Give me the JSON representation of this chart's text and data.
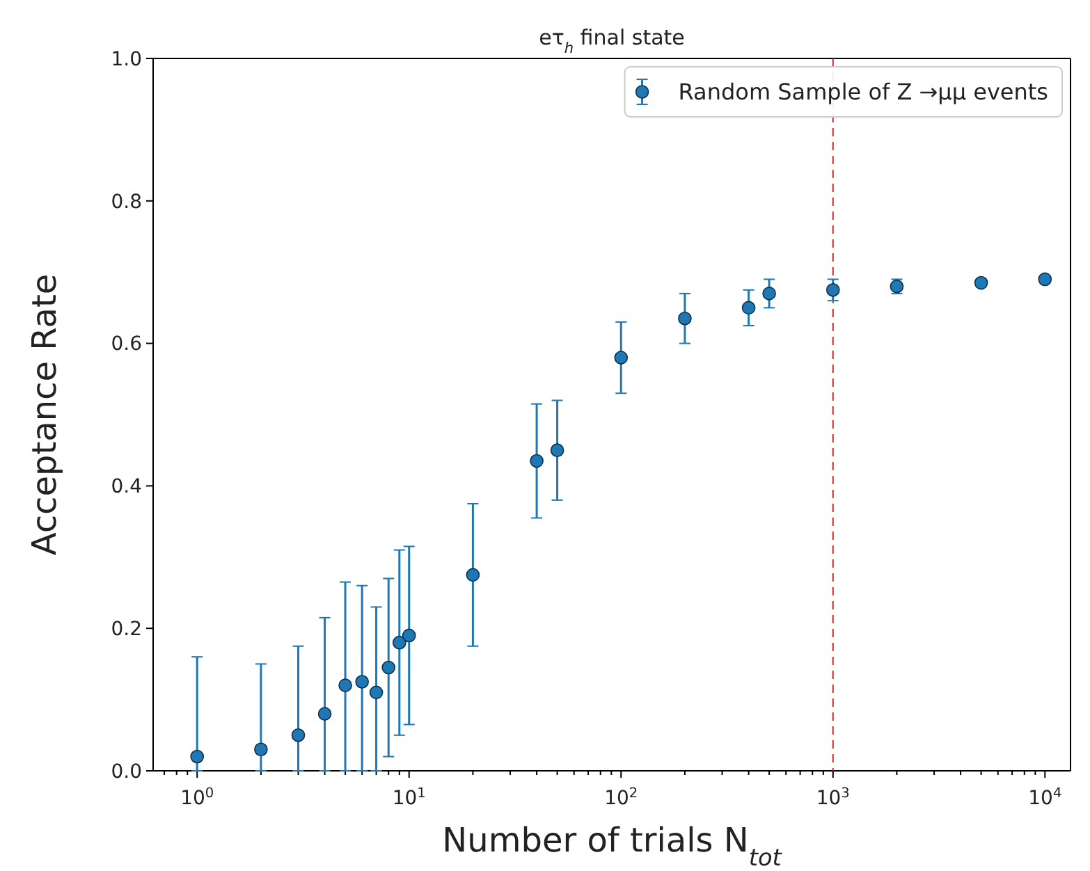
{
  "chart_data": {
    "type": "scatter",
    "title": "eτ$_{h}$ final state",
    "xlabel": "Number of trials N$_{tot}$",
    "ylabel": "Acceptance Rate",
    "log": "x",
    "xlim": [
      0.62,
      13200
    ],
    "xticks": [
      {
        "value": 1,
        "label": "10$^{0}$"
      },
      {
        "value": 10,
        "label": "10$^{1}$"
      },
      {
        "value": 100,
        "label": "10$^{2}$"
      },
      {
        "value": 1000,
        "label": "10$^{3}$"
      },
      {
        "value": 10000,
        "label": "10$^{4}$"
      }
    ],
    "ylim": [
      0,
      1
    ],
    "yticks": [
      {
        "value": 0,
        "label": "0.0"
      },
      0.2,
      0.4,
      0.6,
      0.8,
      {
        "value": 1,
        "label": "1.0"
      }
    ],
    "marker": "circle",
    "legend": "top right",
    "grid": false,
    "ref_lines": [
      {
        "axis": "x",
        "value": 1000,
        "color": "#d62728",
        "line_style": "dashed"
      }
    ],
    "series": [
      {
        "name": "Random Sample of Z →μμ events",
        "color": "#1f77b4",
        "x": [
          1,
          2,
          3,
          4,
          5,
          6,
          7,
          8,
          9,
          10,
          20,
          40,
          50,
          100,
          200,
          400,
          500,
          1000,
          2000,
          5000,
          10000
        ],
        "values": [
          0.02,
          0.03,
          0.05,
          0.08,
          0.12,
          0.125,
          0.11,
          0.145,
          0.18,
          0.19,
          0.275,
          0.435,
          0.45,
          0.58,
          0.635,
          0.65,
          0.67,
          0.675,
          0.68,
          0.685,
          0.69
        ],
        "errors": [
          [
            0,
            0.16
          ],
          [
            0,
            0.15
          ],
          [
            0,
            0.175
          ],
          [
            0,
            0.215
          ],
          [
            0,
            0.265
          ],
          [
            0,
            0.26
          ],
          [
            0,
            0.23
          ],
          [
            0.02,
            0.27
          ],
          [
            0.05,
            0.31
          ],
          [
            0.065,
            0.315
          ],
          [
            0.175,
            0.375
          ],
          [
            0.355,
            0.515
          ],
          [
            0.38,
            0.52
          ],
          [
            0.53,
            0.63
          ],
          [
            0.6,
            0.67
          ],
          [
            0.625,
            0.675
          ],
          [
            0.65,
            0.69
          ],
          [
            0.66,
            0.69
          ],
          [
            0.67,
            0.69
          ],
          [
            0.68,
            0.69
          ],
          [
            0.685,
            0.695
          ]
        ]
      }
    ]
  }
}
